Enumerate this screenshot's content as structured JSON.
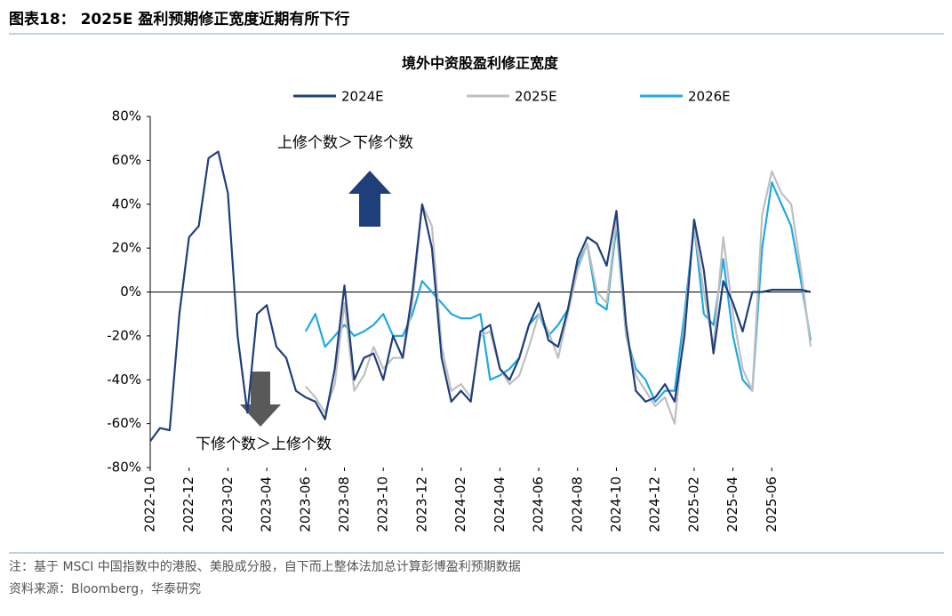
{
  "header": {
    "title": "图表18： 2025E 盈利预期修正宽度近期有所下行"
  },
  "chart_data": {
    "type": "line",
    "title": "境外中资股盈利修正宽度",
    "categories": [
      "2022-10",
      null,
      null,
      null,
      "2022-12",
      null,
      null,
      null,
      "2023-02",
      null,
      null,
      null,
      "2023-04",
      null,
      null,
      null,
      "2023-06",
      null,
      null,
      null,
      "2023-08",
      null,
      null,
      null,
      "2023-10",
      null,
      null,
      null,
      "2023-12",
      null,
      null,
      null,
      "2024-02",
      null,
      null,
      null,
      "2024-04",
      null,
      null,
      null,
      "2024-06",
      null,
      null,
      null,
      "2024-08",
      null,
      null,
      null,
      "2024-10",
      null,
      null,
      null,
      "2024-12",
      null,
      null,
      null,
      "2025-02",
      null,
      null,
      null,
      "2025-04",
      null,
      null,
      null,
      "2025-06",
      null,
      null,
      null,
      null
    ],
    "series": [
      {
        "name": "2024E",
        "color": "#1f3f7a",
        "values": [
          -68,
          -62,
          -63,
          -10,
          25,
          30,
          61,
          64,
          45,
          -20,
          -55,
          -10,
          -6,
          -25,
          -30,
          -45,
          -48,
          -50,
          -58,
          -35,
          3,
          -40,
          -30,
          -28,
          -40,
          -20,
          -30,
          0,
          40,
          20,
          -30,
          -50,
          -45,
          -50,
          -18,
          -15,
          -35,
          -40,
          -30,
          -15,
          -5,
          -22,
          -25,
          -8,
          15,
          25,
          22,
          12,
          37,
          -15,
          -45,
          -50,
          -48,
          -42,
          -50,
          -20,
          33,
          10,
          -28,
          5,
          -5,
          -18,
          0,
          0,
          1,
          1,
          1,
          1,
          0
        ]
      },
      {
        "name": "2025E",
        "color": "#bfbfbf",
        "values": [
          null,
          null,
          null,
          null,
          null,
          null,
          null,
          null,
          null,
          null,
          null,
          null,
          null,
          null,
          null,
          null,
          -43,
          -48,
          -55,
          -42,
          -5,
          -45,
          -38,
          -25,
          -35,
          -30,
          -30,
          -5,
          40,
          30,
          -25,
          -45,
          -42,
          -48,
          -20,
          -18,
          -35,
          -42,
          -38,
          -25,
          -10,
          -18,
          -30,
          -10,
          10,
          22,
          0,
          -5,
          33,
          -20,
          -38,
          -45,
          -52,
          -48,
          -60,
          -15,
          30,
          0,
          -25,
          25,
          -10,
          -35,
          -45,
          35,
          55,
          45,
          40,
          10,
          -25
        ]
      },
      {
        "name": "2026E",
        "color": "#1fa9e1",
        "values": [
          null,
          null,
          null,
          null,
          null,
          null,
          null,
          null,
          null,
          null,
          null,
          null,
          null,
          null,
          null,
          null,
          -18,
          -10,
          -25,
          -20,
          -15,
          -20,
          -18,
          -15,
          -10,
          -20,
          -20,
          -10,
          5,
          0,
          -5,
          -10,
          -12,
          -12,
          -10,
          -40,
          -38,
          -35,
          -30,
          -15,
          -10,
          -20,
          -15,
          -8,
          12,
          22,
          -5,
          -8,
          30,
          -20,
          -35,
          -40,
          -50,
          -45,
          -45,
          -10,
          30,
          -10,
          -15,
          15,
          -20,
          -40,
          -45,
          20,
          50,
          40,
          30,
          5,
          -22
        ]
      }
    ],
    "ylim": [
      -80,
      80
    ],
    "yticks": [
      {
        "value": -80,
        "label": "-80%"
      },
      {
        "value": -60,
        "label": "-60%"
      },
      {
        "value": -40,
        "label": "-40%"
      },
      {
        "value": -20,
        "label": "-20%"
      },
      {
        "value": 0,
        "label": "0%"
      },
      {
        "value": 20,
        "label": "20%"
      },
      {
        "value": 40,
        "label": "40%"
      },
      {
        "value": 60,
        "label": "60%"
      },
      {
        "value": 80,
        "label": "80%"
      }
    ],
    "annotations": [
      "上修个数＞下修个数",
      "下修个数＞上修个数"
    ],
    "legend": "top"
  },
  "footer": {
    "note": "注：基于 MSCI 中国指数中的港股、美股成分股，自下而上整体法加总计算彭博盈利预期数据",
    "source": "资料来源：Bloomberg，华泰研究"
  }
}
